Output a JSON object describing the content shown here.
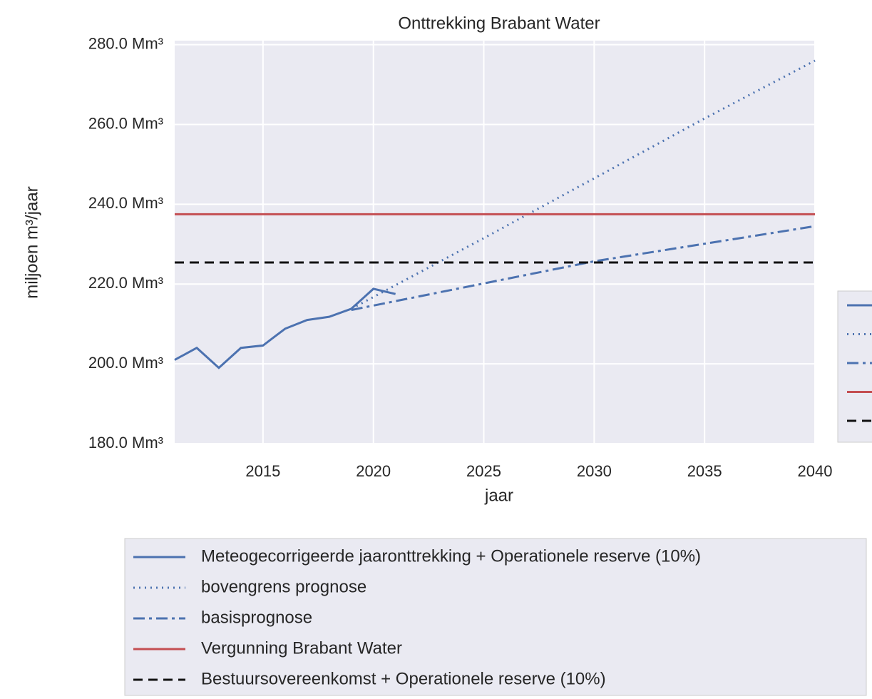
{
  "chart_data": {
    "type": "line",
    "title": "Onttrekking Brabant Water",
    "xlabel": "jaar",
    "ylabel": "miljoen m³/jaar",
    "xlim": [
      2011,
      2040
    ],
    "xticks": [
      2015,
      2020,
      2025,
      2030,
      2035,
      2040
    ],
    "ylim": [
      180,
      281
    ],
    "yticks": [
      {
        "value": 180,
        "label": "180.0 Mm³"
      },
      {
        "value": 200,
        "label": "200.0 Mm³"
      },
      {
        "value": 220,
        "label": "220.0 Mm³"
      },
      {
        "value": 240,
        "label": "240.0 Mm³"
      },
      {
        "value": 260,
        "label": "260.0 Mm³"
      },
      {
        "value": 280,
        "label": "280.0 Mm³"
      }
    ],
    "grid": true,
    "legend": "bottom",
    "series": [
      {
        "name": "Meteogecorrigeerde jaaronttrekking + Operationele reserve (10%)",
        "color": "#4c72b0",
        "style": "solid",
        "x": [
          2011,
          2012,
          2013,
          2014,
          2015,
          2016,
          2017,
          2018,
          2019,
          2020,
          2021
        ],
        "values": [
          201,
          204,
          199,
          204,
          204.6,
          208.8,
          211,
          211.8,
          213.8,
          218.8,
          217.5
        ]
      },
      {
        "name": "bovengrens prognose",
        "color": "#4c72b0",
        "style": "dotted",
        "x": [
          2019,
          2025,
          2030,
          2035,
          2040
        ],
        "values": [
          213.8,
          231.5,
          246.5,
          261.5,
          276
        ]
      },
      {
        "name": "basisprognose",
        "color": "#4c72b0",
        "style": "dashdot",
        "x": [
          2019,
          2030,
          2040
        ],
        "values": [
          213.5,
          225.7,
          234.5
        ]
      },
      {
        "name": "Vergunning Brabant Water",
        "color": "#c44e52",
        "style": "solid",
        "x": [
          2011,
          2040
        ],
        "values": [
          237.5,
          237.5
        ]
      },
      {
        "name": "Bestuursovereenkomst + Operationele reserve (10%)",
        "color": "#111111",
        "style": "dashed",
        "x": [
          2011,
          2040
        ],
        "values": [
          225.4,
          225.4
        ]
      }
    ]
  }
}
